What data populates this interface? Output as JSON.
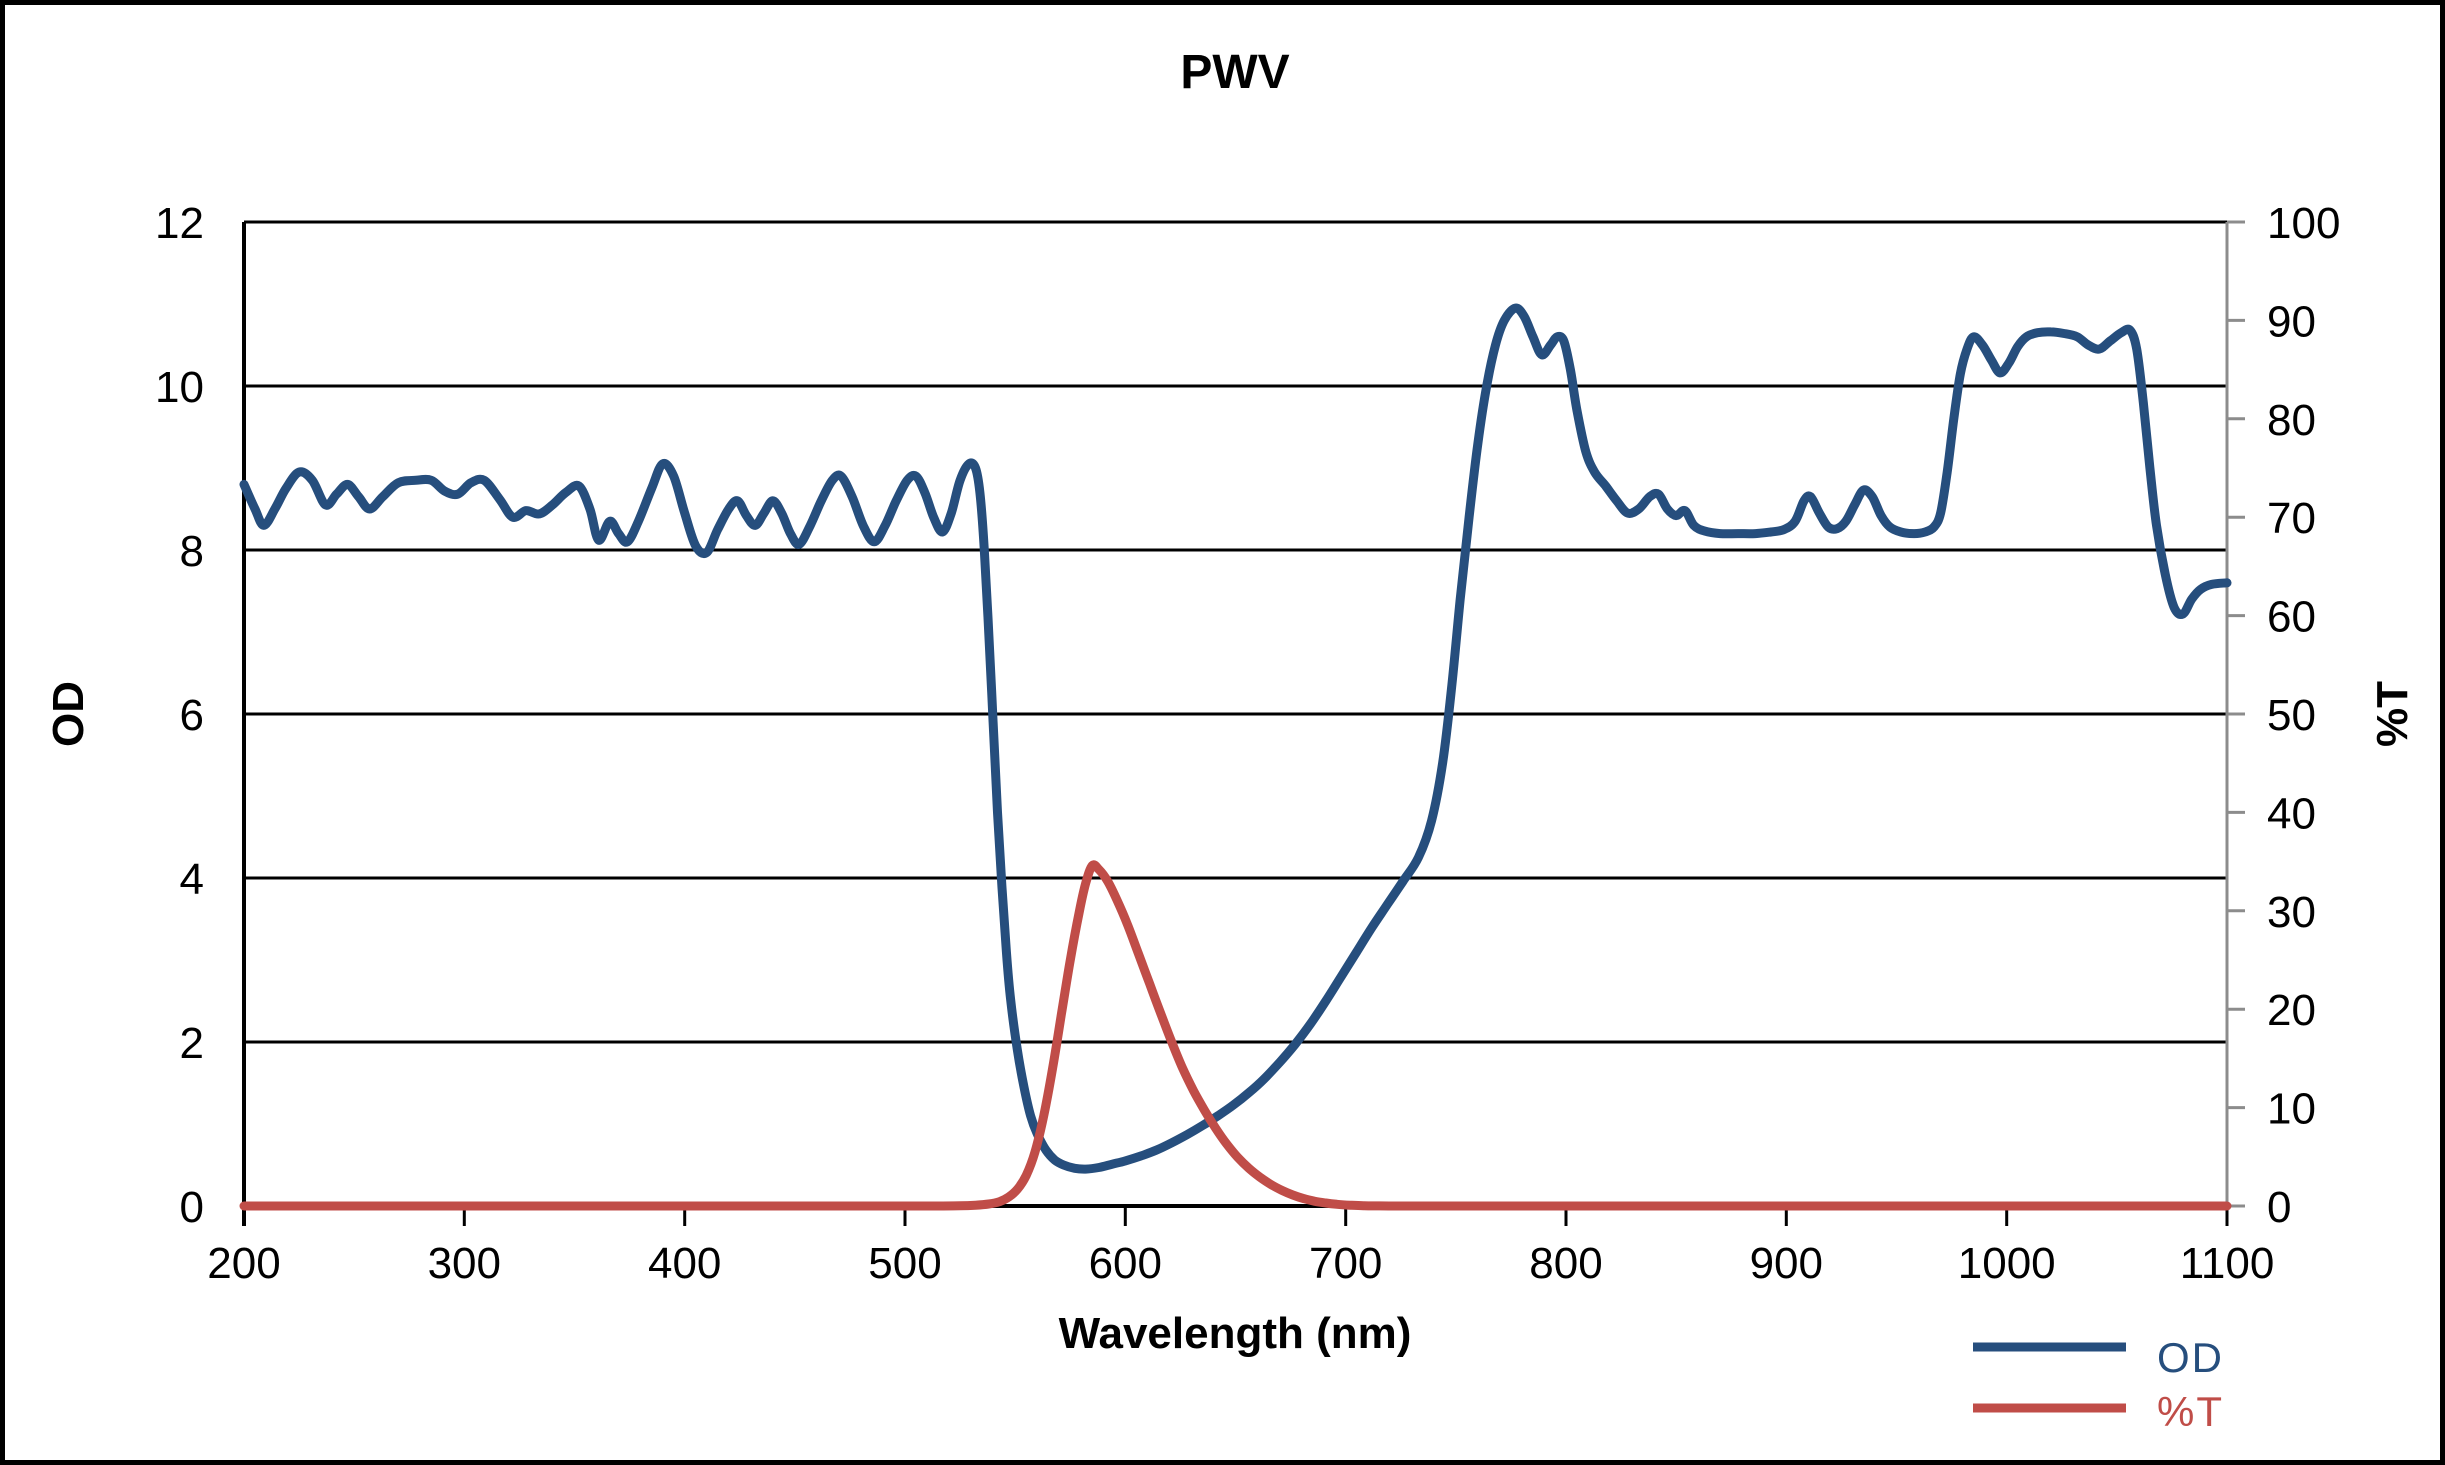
{
  "chart_data": {
    "type": "line",
    "title": "PWV",
    "grid": "horizontal-on",
    "x_axis": {
      "label": "Wavelength (nm)",
      "min": 200,
      "max": 1100,
      "ticks": [
        200,
        300,
        400,
        500,
        600,
        700,
        800,
        900,
        1000,
        1100
      ]
    },
    "y_axis_left": {
      "label": "OD",
      "min": 0,
      "max": 12,
      "ticks": [
        0,
        2,
        4,
        6,
        8,
        10,
        12
      ]
    },
    "y_axis_right": {
      "label": "%T",
      "min": 0,
      "max": 100,
      "ticks": [
        0,
        10,
        20,
        30,
        40,
        50,
        60,
        70,
        80,
        90,
        100
      ]
    },
    "colors": {
      "od_line": "#264E7D",
      "t_line": "#C04D48",
      "gridline": "#000000",
      "left_axis": "#000000",
      "bottom_axis": "#000000",
      "right_axis": "#8C8C8C",
      "tick_label": "#000000"
    },
    "legend": {
      "position": "bottom-right",
      "entries": [
        {
          "label": "OD",
          "color": "#264E7D"
        },
        {
          "label": "%T",
          "color": "#C04D48"
        }
      ]
    },
    "series": [
      {
        "name": "OD",
        "axis": "left",
        "color": "#264E7D",
        "points": [
          [
            200,
            8.8
          ],
          [
            205,
            8.5
          ],
          [
            209,
            8.3
          ],
          [
            214,
            8.5
          ],
          [
            219,
            8.75
          ],
          [
            225,
            8.95
          ],
          [
            231,
            8.85
          ],
          [
            237,
            8.55
          ],
          [
            242,
            8.68
          ],
          [
            247,
            8.8
          ],
          [
            252,
            8.65
          ],
          [
            257,
            8.5
          ],
          [
            263,
            8.65
          ],
          [
            270,
            8.82
          ],
          [
            278,
            8.85
          ],
          [
            285,
            8.85
          ],
          [
            291,
            8.72
          ],
          [
            297,
            8.68
          ],
          [
            303,
            8.82
          ],
          [
            309,
            8.85
          ],
          [
            316,
            8.62
          ],
          [
            322,
            8.4
          ],
          [
            328,
            8.48
          ],
          [
            334,
            8.44
          ],
          [
            340,
            8.55
          ],
          [
            346,
            8.7
          ],
          [
            352,
            8.78
          ],
          [
            357,
            8.5
          ],
          [
            361,
            8.12
          ],
          [
            366,
            8.35
          ],
          [
            370,
            8.2
          ],
          [
            374,
            8.1
          ],
          [
            379,
            8.35
          ],
          [
            385,
            8.75
          ],
          [
            390,
            9.05
          ],
          [
            395,
            8.9
          ],
          [
            400,
            8.45
          ],
          [
            405,
            8.05
          ],
          [
            410,
            7.97
          ],
          [
            415,
            8.25
          ],
          [
            420,
            8.5
          ],
          [
            424,
            8.6
          ],
          [
            428,
            8.42
          ],
          [
            432,
            8.3
          ],
          [
            436,
            8.45
          ],
          [
            440,
            8.6
          ],
          [
            444,
            8.45
          ],
          [
            448,
            8.2
          ],
          [
            452,
            8.07
          ],
          [
            457,
            8.3
          ],
          [
            462,
            8.6
          ],
          [
            467,
            8.85
          ],
          [
            471,
            8.9
          ],
          [
            476,
            8.65
          ],
          [
            481,
            8.3
          ],
          [
            486,
            8.1
          ],
          [
            491,
            8.3
          ],
          [
            496,
            8.6
          ],
          [
            501,
            8.85
          ],
          [
            505,
            8.9
          ],
          [
            509,
            8.7
          ],
          [
            513,
            8.4
          ],
          [
            517,
            8.22
          ],
          [
            521,
            8.45
          ],
          [
            525,
            8.85
          ],
          [
            529,
            9.05
          ],
          [
            532,
            9.0
          ],
          [
            534,
            8.7
          ],
          [
            536,
            8.0
          ],
          [
            538,
            7.0
          ],
          [
            540,
            5.9
          ],
          [
            542,
            4.8
          ],
          [
            544,
            3.9
          ],
          [
            546,
            3.1
          ],
          [
            548,
            2.5
          ],
          [
            551,
            1.9
          ],
          [
            554,
            1.45
          ],
          [
            557,
            1.1
          ],
          [
            560,
            0.88
          ],
          [
            564,
            0.68
          ],
          [
            568,
            0.56
          ],
          [
            572,
            0.5
          ],
          [
            577,
            0.46
          ],
          [
            582,
            0.45
          ],
          [
            588,
            0.47
          ],
          [
            594,
            0.51
          ],
          [
            600,
            0.55
          ],
          [
            607,
            0.61
          ],
          [
            614,
            0.68
          ],
          [
            621,
            0.77
          ],
          [
            628,
            0.87
          ],
          [
            635,
            0.98
          ],
          [
            642,
            1.1
          ],
          [
            649,
            1.23
          ],
          [
            656,
            1.38
          ],
          [
            663,
            1.55
          ],
          [
            670,
            1.75
          ],
          [
            677,
            1.97
          ],
          [
            684,
            2.22
          ],
          [
            691,
            2.5
          ],
          [
            698,
            2.8
          ],
          [
            705,
            3.1
          ],
          [
            712,
            3.4
          ],
          [
            719,
            3.68
          ],
          [
            726,
            3.96
          ],
          [
            733,
            4.25
          ],
          [
            739,
            4.7
          ],
          [
            744,
            5.4
          ],
          [
            748,
            6.3
          ],
          [
            752,
            7.4
          ],
          [
            756,
            8.4
          ],
          [
            760,
            9.3
          ],
          [
            764,
            10.0
          ],
          [
            768,
            10.5
          ],
          [
            772,
            10.8
          ],
          [
            777,
            10.95
          ],
          [
            781,
            10.85
          ],
          [
            785,
            10.6
          ],
          [
            789,
            10.38
          ],
          [
            793,
            10.5
          ],
          [
            796,
            10.6
          ],
          [
            799,
            10.55
          ],
          [
            802,
            10.2
          ],
          [
            805,
            9.7
          ],
          [
            809,
            9.2
          ],
          [
            813,
            8.95
          ],
          [
            818,
            8.78
          ],
          [
            823,
            8.6
          ],
          [
            828,
            8.45
          ],
          [
            833,
            8.5
          ],
          [
            838,
            8.65
          ],
          [
            842,
            8.68
          ],
          [
            846,
            8.5
          ],
          [
            850,
            8.42
          ],
          [
            854,
            8.48
          ],
          [
            858,
            8.3
          ],
          [
            863,
            8.23
          ],
          [
            870,
            8.2
          ],
          [
            878,
            8.2
          ],
          [
            886,
            8.2
          ],
          [
            893,
            8.22
          ],
          [
            899,
            8.25
          ],
          [
            904,
            8.35
          ],
          [
            908,
            8.6
          ],
          [
            911,
            8.65
          ],
          [
            915,
            8.45
          ],
          [
            919,
            8.28
          ],
          [
            923,
            8.26
          ],
          [
            927,
            8.35
          ],
          [
            931,
            8.55
          ],
          [
            935,
            8.73
          ],
          [
            939,
            8.65
          ],
          [
            943,
            8.42
          ],
          [
            947,
            8.28
          ],
          [
            952,
            8.22
          ],
          [
            958,
            8.2
          ],
          [
            963,
            8.22
          ],
          [
            967,
            8.28
          ],
          [
            970,
            8.45
          ],
          [
            973,
            8.95
          ],
          [
            976,
            9.6
          ],
          [
            979,
            10.15
          ],
          [
            982,
            10.45
          ],
          [
            985,
            10.6
          ],
          [
            989,
            10.5
          ],
          [
            993,
            10.32
          ],
          [
            997,
            10.16
          ],
          [
            1001,
            10.28
          ],
          [
            1005,
            10.48
          ],
          [
            1009,
            10.6
          ],
          [
            1014,
            10.65
          ],
          [
            1020,
            10.66
          ],
          [
            1026,
            10.64
          ],
          [
            1032,
            10.6
          ],
          [
            1037,
            10.5
          ],
          [
            1042,
            10.45
          ],
          [
            1047,
            10.55
          ],
          [
            1052,
            10.65
          ],
          [
            1056,
            10.68
          ],
          [
            1059,
            10.45
          ],
          [
            1062,
            9.8
          ],
          [
            1065,
            9.0
          ],
          [
            1068,
            8.3
          ],
          [
            1072,
            7.7
          ],
          [
            1076,
            7.3
          ],
          [
            1080,
            7.22
          ],
          [
            1084,
            7.4
          ],
          [
            1088,
            7.52
          ],
          [
            1093,
            7.58
          ],
          [
            1100,
            7.6
          ]
        ]
      },
      {
        "name": "%T",
        "axis": "right",
        "color": "#C04D48",
        "points": [
          [
            200,
            0
          ],
          [
            250,
            0
          ],
          [
            300,
            0
          ],
          [
            350,
            0
          ],
          [
            400,
            0
          ],
          [
            450,
            0
          ],
          [
            500,
            0
          ],
          [
            515,
            0
          ],
          [
            525,
            0.02
          ],
          [
            532,
            0.08
          ],
          [
            538,
            0.2
          ],
          [
            543,
            0.45
          ],
          [
            547,
            0.9
          ],
          [
            551,
            1.7
          ],
          [
            555,
            3.1
          ],
          [
            559,
            5.5
          ],
          [
            563,
            9.2
          ],
          [
            567,
            14
          ],
          [
            571,
            19.5
          ],
          [
            575,
            25
          ],
          [
            579,
            29.8
          ],
          [
            582,
            32.8
          ],
          [
            585,
            34.6
          ],
          [
            588,
            34.2
          ],
          [
            592,
            33
          ],
          [
            596,
            31.2
          ],
          [
            601,
            28.6
          ],
          [
            606,
            25.6
          ],
          [
            611,
            22.6
          ],
          [
            616,
            19.6
          ],
          [
            621,
            16.7
          ],
          [
            626,
            14
          ],
          [
            631,
            11.7
          ],
          [
            636,
            9.7
          ],
          [
            641,
            7.9
          ],
          [
            646,
            6.3
          ],
          [
            651,
            4.95
          ],
          [
            656,
            3.85
          ],
          [
            661,
            2.95
          ],
          [
            666,
            2.2
          ],
          [
            671,
            1.6
          ],
          [
            676,
            1.12
          ],
          [
            681,
            0.75
          ],
          [
            686,
            0.48
          ],
          [
            691,
            0.3
          ],
          [
            696,
            0.17
          ],
          [
            702,
            0.08
          ],
          [
            708,
            0.03
          ],
          [
            715,
            0.01
          ],
          [
            725,
            0
          ],
          [
            760,
            0
          ],
          [
            800,
            0
          ],
          [
            850,
            0
          ],
          [
            900,
            0
          ],
          [
            950,
            0
          ],
          [
            1000,
            0
          ],
          [
            1050,
            0
          ],
          [
            1100,
            0
          ]
        ]
      }
    ]
  }
}
